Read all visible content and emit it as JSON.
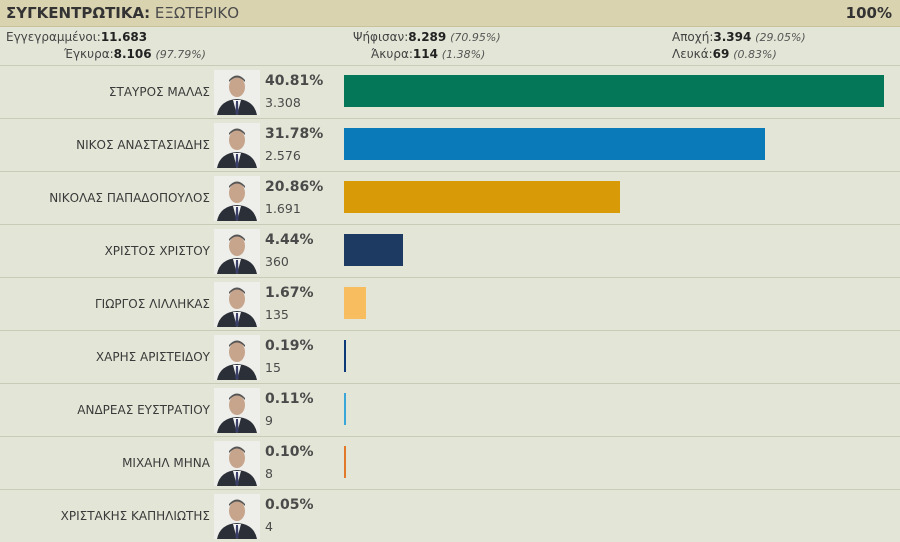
{
  "header": {
    "title_bold": "ΣΥΓΚΕΝΤΡΩΤΙΚΑ:",
    "title_rest": "ΕΞΩΤΕΡΙΚΟ",
    "counted_pct": "100%"
  },
  "stats": {
    "registered_label": "Εγγεγραμμένοι:",
    "registered_value": "11.683",
    "voted_label": "Ψήφισαν:",
    "voted_value": "8.289",
    "voted_pct": "(70.95%)",
    "abstain_label": "Αποχή:",
    "abstain_value": "3.394",
    "abstain_pct": "(29.05%)",
    "valid_label": "Έγκυρα:",
    "valid_value": "8.106",
    "valid_pct": "(97.79%)",
    "invalid_label": "Άκυρα:",
    "invalid_value": "114",
    "invalid_pct": "(1.38%)",
    "blank_label": "Λευκά:",
    "blank_value": "69",
    "blank_pct": "(0.83%)"
  },
  "candidates": [
    {
      "name": "ΣΤΑΥΡΟΣ ΜΑΛΑΣ",
      "pct_label": "40.81%",
      "votes": "3.308",
      "share": 40.81,
      "color": "#047758"
    },
    {
      "name": "ΝΙΚΟΣ ΑΝΑΣΤΑΣΙΑΔΗΣ",
      "pct_label": "31.78%",
      "votes": "2.576",
      "share": 31.78,
      "color": "#0a7ab8"
    },
    {
      "name": "ΝΙΚΟΛΑΣ ΠΑΠΑΔΟΠΟΥΛΟΣ",
      "pct_label": "20.86%",
      "votes": "1.691",
      "share": 20.86,
      "color": "#d89a06"
    },
    {
      "name": "ΧΡΙΣΤΟΣ ΧΡΙΣΤΟΥ",
      "pct_label": "4.44%",
      "votes": "360",
      "share": 4.44,
      "color": "#1d3a63"
    },
    {
      "name": "ΓΙΩΡΓΟΣ ΛΙΛΛΗΚΑΣ",
      "pct_label": "1.67%",
      "votes": "135",
      "share": 1.67,
      "color": "#f8bd5e"
    },
    {
      "name": "ΧΑΡΗΣ ΑΡΙΣΤΕΙΔΟΥ",
      "pct_label": "0.19%",
      "votes": "15",
      "share": 0.19,
      "color": "#0c3a78"
    },
    {
      "name": "ΑΝΔΡΕΑΣ ΕΥΣΤΡΑΤΙΟΥ",
      "pct_label": "0.11%",
      "votes": "9",
      "share": 0.11,
      "color": "#3aa7d8"
    },
    {
      "name": "ΜΙΧΑΗΛ ΜΗΝΑ",
      "pct_label": "0.10%",
      "votes": "8",
      "share": 0.1,
      "color": "#e07a2a"
    },
    {
      "name": "ΧΡΙΣΤΑΚΗΣ ΚΑΠΗΛΙΩΤΗΣ",
      "pct_label": "0.05%",
      "votes": "4",
      "share": 0.05,
      "color": "#b8b8b8"
    }
  ]
}
